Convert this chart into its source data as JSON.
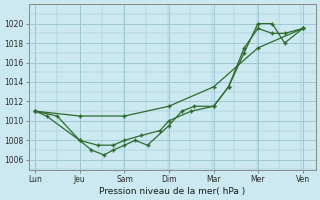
{
  "background_color": "#cce8f0",
  "grid_color": "#9ec8d4",
  "line_color": "#2d6b2d",
  "xlabel": "Pression niveau de la mer( hPa )",
  "ylim": [
    1005.0,
    1022.0
  ],
  "yticks": [
    1006,
    1008,
    1010,
    1012,
    1014,
    1016,
    1018,
    1020
  ],
  "x_labels": [
    "Lun",
    "Jeu",
    "Sam",
    "Dim",
    "Mar",
    "Mer",
    "Ven"
  ],
  "x_positions": [
    0,
    0.71,
    1.43,
    2.14,
    2.86,
    3.57,
    4.29
  ],
  "xlim": [
    -0.1,
    4.5
  ],
  "series": [
    {
      "x": [
        0,
        0.18,
        0.71,
        0.9,
        1.1,
        1.25,
        1.43,
        1.6,
        1.8,
        2.14,
        2.35,
        2.55,
        2.86,
        3.1,
        3.35,
        3.57,
        3.8,
        4.0,
        4.29
      ],
      "y": [
        1011,
        1010.5,
        1008,
        1007,
        1006.5,
        1007,
        1007.5,
        1008,
        1007.5,
        1009.5,
        1011,
        1011.5,
        1011.5,
        1013.5,
        1017,
        1020,
        1020,
        1018,
        1019.5
      ]
    },
    {
      "x": [
        0,
        0.35,
        0.71,
        1.0,
        1.25,
        1.43,
        1.7,
        2.0,
        2.14,
        2.5,
        2.86,
        3.1,
        3.35,
        3.57,
        3.8,
        4.0,
        4.29
      ],
      "y": [
        1011,
        1010.5,
        1008,
        1007.5,
        1007.5,
        1008,
        1008.5,
        1009,
        1010,
        1011,
        1011.5,
        1013.5,
        1017.5,
        1019.5,
        1019,
        1019,
        1019.5
      ]
    },
    {
      "x": [
        0,
        0.71,
        1.43,
        2.14,
        2.86,
        3.57,
        4.29
      ],
      "y": [
        1011,
        1010.5,
        1010.5,
        1011.5,
        1013.5,
        1017.5,
        1019.5
      ]
    }
  ]
}
